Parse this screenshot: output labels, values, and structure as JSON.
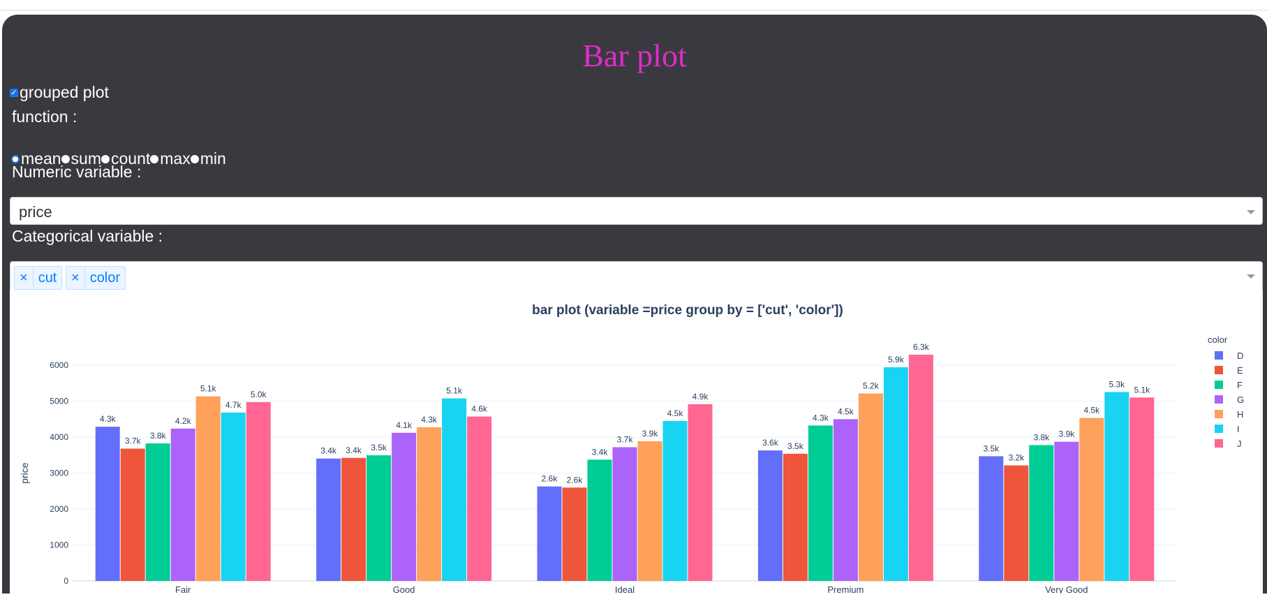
{
  "page": {
    "title": "Bar plot",
    "grouped_label": "grouped plot",
    "grouped_checked": true,
    "function_label": "function :",
    "radio_options": [
      "mean",
      "sum",
      "count",
      "max",
      "min"
    ],
    "radio_selected": "mean",
    "numeric_label": "Numeric variable :",
    "numeric_value": "price",
    "categorical_label": "Categorical variable :",
    "categorical_tags": [
      "cut",
      "color"
    ],
    "tag_remove_glyph": "×"
  },
  "colors": {
    "panel_bg": "#3a3940",
    "title": "#e02bc8",
    "accent": "#1a73e8"
  },
  "chart_data": {
    "type": "bar",
    "title": "bar plot (variable =price group by = ['cut', 'color'])",
    "xlabel": "",
    "ylabel": "price",
    "categories": [
      "Fair",
      "Good",
      "Ideal",
      "Premium",
      "Very Good"
    ],
    "ylim": [
      0,
      6500
    ],
    "yticks": [
      0,
      1000,
      2000,
      3000,
      4000,
      5000,
      6000
    ],
    "grid": true,
    "legend_title": "color",
    "legend_position": "right",
    "series": [
      {
        "name": "D",
        "color": "#636efa",
        "values": [
          4291,
          3405,
          2629,
          3631,
          3470
        ],
        "labels": [
          "4.3k",
          "3.4k",
          "2.6k",
          "3.6k",
          "3.5k"
        ]
      },
      {
        "name": "E",
        "color": "#ef553b",
        "values": [
          3682,
          3424,
          2598,
          3539,
          3215
        ],
        "labels": [
          "3.7k",
          "3.4k",
          "2.6k",
          "3.5k",
          "3.2k"
        ]
      },
      {
        "name": "F",
        "color": "#00cc96",
        "values": [
          3827,
          3496,
          3375,
          4325,
          3779
        ],
        "labels": [
          "3.8k",
          "3.5k",
          "3.4k",
          "4.3k",
          "3.8k"
        ]
      },
      {
        "name": "G",
        "color": "#ab63fa",
        "values": [
          4239,
          4123,
          3721,
          4501,
          3873
        ],
        "labels": [
          "4.2k",
          "4.1k",
          "3.7k",
          "4.5k",
          "3.9k"
        ]
      },
      {
        "name": "H",
        "color": "#ffa15a",
        "values": [
          5136,
          4276,
          3889,
          5217,
          4535
        ],
        "labels": [
          "5.1k",
          "4.3k",
          "3.9k",
          "5.2k",
          "4.5k"
        ]
      },
      {
        "name": "I",
        "color": "#19d3f3",
        "values": [
          4685,
          5079,
          4452,
          5947,
          5256
        ],
        "labels": [
          "4.7k",
          "5.1k",
          "4.5k",
          "5.9k",
          "5.3k"
        ]
      },
      {
        "name": "J",
        "color": "#ff6692",
        "values": [
          4976,
          4574,
          4918,
          6295,
          5104
        ],
        "labels": [
          "5.0k",
          "4.6k",
          "4.9k",
          "6.3k",
          "5.1k"
        ]
      }
    ]
  }
}
